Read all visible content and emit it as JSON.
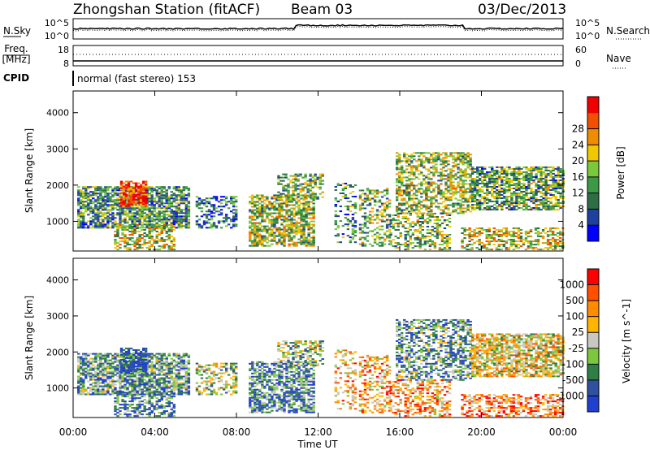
{
  "header": {
    "station": "Zhongshan Station (fitACF)",
    "beam": "Beam 03",
    "date": "03/Dec/2013"
  },
  "top_panel": {
    "left_label": "N.Sky",
    "left_ticks": [
      "10^5",
      "10^0"
    ],
    "right_ticks": [
      "10^5",
      "10^0"
    ],
    "right_label": "N.Search"
  },
  "freq_panel": {
    "left_label_1": "Freq.",
    "left_label_2": "[MHz]",
    "left_ticks": [
      "18",
      "8"
    ],
    "right_ticks": [
      "60",
      "0"
    ],
    "right_label": "Nave"
  },
  "cpid": {
    "label": "CPID",
    "value": "normal (fast stereo) 153"
  },
  "colors": {
    "power": [
      "#0000ff",
      "#2040a0",
      "#2e6e46",
      "#3c9a46",
      "#7cc83c",
      "#f0c800",
      "#f08c00",
      "#f05000",
      "#f00000"
    ],
    "velocity": [
      "#ff0000",
      "#ff5000",
      "#ff8c00",
      "#ffb400",
      "#c8c8c0",
      "#7cc83c",
      "#2e7e46",
      "#3050a0",
      "#2040d0"
    ]
  },
  "chart_data": [
    {
      "type": "heatmap",
      "name": "power",
      "ylabel": "Slant Range [km]",
      "y_ticks": [
        "1000",
        "2000",
        "3000",
        "4000"
      ],
      "ylim": [
        180,
        4600
      ],
      "colorbar_label": "Power [dB]",
      "colorbar_ticks": [
        "4",
        "8",
        "12",
        "16",
        "20",
        "24",
        "28"
      ],
      "colorbar_range": [
        0,
        32
      ]
    },
    {
      "type": "heatmap",
      "name": "velocity",
      "ylabel": "Slant Range [km]",
      "y_ticks": [
        "1000",
        "2000",
        "3000",
        "4000"
      ],
      "ylim": [
        180,
        4600
      ],
      "xlabel": "Time UT",
      "x_ticks": [
        "00:00",
        "04:00",
        "08:00",
        "12:00",
        "16:00",
        "20:00",
        "00:00"
      ],
      "colorbar_label": "Velocity [m s^-1]",
      "colorbar_ticks": [
        "1000",
        "500",
        "100",
        "25",
        "-25",
        "-100",
        "-500",
        "-1000"
      ]
    }
  ]
}
